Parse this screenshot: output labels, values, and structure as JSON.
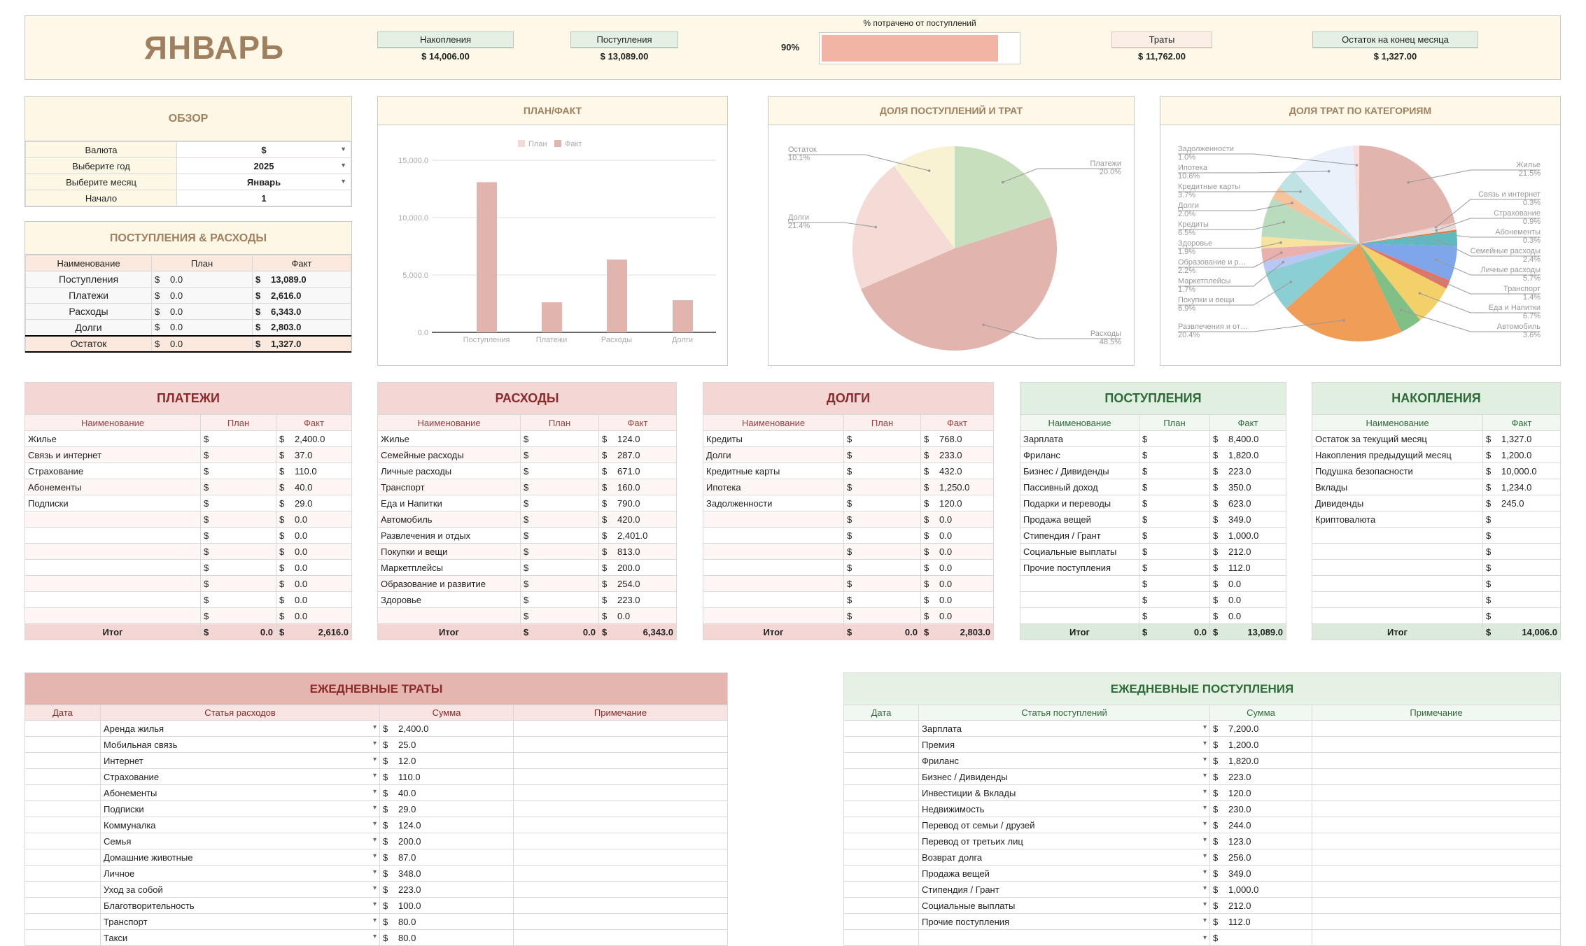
{
  "currency": "$",
  "header": {
    "title": "ЯНВАРЬ",
    "savings_label": "Накопления",
    "savings_value": "$ 14,006.00",
    "income_label": "Поступления",
    "income_value": "$ 13,089.00",
    "spent_pct_label": "% потрачено от поступлений",
    "spent_pct_text": "90%",
    "spent_pct": 0.9,
    "expenses_label": "Траты",
    "expenses_value": "$ 11,762.00",
    "balance_label": "Остаток на конец месяца",
    "balance_value": "$ 1,327.00"
  },
  "overview": {
    "title": "ОБЗОР",
    "rows": [
      {
        "label": "Валюта",
        "value": "$",
        "dropdown": true
      },
      {
        "label": "Выберите год",
        "value": "2025",
        "dropdown": true
      },
      {
        "label": "Выберите месяц",
        "value": "Январь",
        "dropdown": true
      },
      {
        "label": "Начало",
        "value": "1",
        "dropdown": false
      }
    ]
  },
  "summary": {
    "title": "ПОСТУПЛЕНИЯ & РАСХОДЫ",
    "columns": [
      "Наименование",
      "План",
      "Факт"
    ],
    "rows": [
      {
        "name": "Поступления",
        "plan": "0.0",
        "fact": "13,089.0"
      },
      {
        "name": "Платежи",
        "plan": "0.0",
        "fact": "2,616.0"
      },
      {
        "name": "Расходы",
        "plan": "0.0",
        "fact": "6,343.0"
      },
      {
        "name": "Долги",
        "plan": "0.0",
        "fact": "2,803.0"
      }
    ],
    "total": {
      "name": "Остаток",
      "plan": "0.0",
      "fact": "1,327.0"
    }
  },
  "payments": {
    "title": "ПЛАТЕЖИ",
    "columns": [
      "Наименование",
      "План",
      "Факт"
    ],
    "rows": [
      {
        "name": "Жилье",
        "fact": "2,400.0"
      },
      {
        "name": "Связь и интернет",
        "fact": "37.0"
      },
      {
        "name": "Страхование",
        "fact": "110.0"
      },
      {
        "name": "Абонементы",
        "fact": "40.0"
      },
      {
        "name": "Подписки",
        "fact": "29.0"
      },
      {
        "name": "",
        "fact": "0.0"
      },
      {
        "name": "",
        "fact": "0.0"
      },
      {
        "name": "",
        "fact": "0.0"
      },
      {
        "name": "",
        "fact": "0.0"
      },
      {
        "name": "",
        "fact": "0.0"
      },
      {
        "name": "",
        "fact": "0.0"
      },
      {
        "name": "",
        "fact": "0.0"
      }
    ],
    "total": {
      "name": "Итог",
      "plan": "0.0",
      "fact": "2,616.0"
    }
  },
  "expenses": {
    "title": "РАСХОДЫ",
    "columns": [
      "Наименование",
      "План",
      "Факт"
    ],
    "rows": [
      {
        "name": "Жилье",
        "fact": "124.0"
      },
      {
        "name": "Семейные расходы",
        "fact": "287.0"
      },
      {
        "name": "Личные расходы",
        "fact": "671.0"
      },
      {
        "name": "Транспорт",
        "fact": "160.0"
      },
      {
        "name": "Еда и Напитки",
        "fact": "790.0"
      },
      {
        "name": "Автомобиль",
        "fact": "420.0"
      },
      {
        "name": "Развлечения и отдых",
        "fact": "2,401.0"
      },
      {
        "name": "Покупки и вещи",
        "fact": "813.0"
      },
      {
        "name": "Маркетплейсы",
        "fact": "200.0"
      },
      {
        "name": "Образование и развитие",
        "fact": "254.0"
      },
      {
        "name": "Здоровье",
        "fact": "223.0"
      },
      {
        "name": "",
        "fact": "0.0"
      }
    ],
    "total": {
      "name": "Итог",
      "plan": "0.0",
      "fact": "6,343.0"
    }
  },
  "debts": {
    "title": "ДОЛГИ",
    "columns": [
      "Наименование",
      "План",
      "Факт"
    ],
    "rows": [
      {
        "name": "Кредиты",
        "fact": "768.0"
      },
      {
        "name": "Долги",
        "fact": "233.0"
      },
      {
        "name": "Кредитные карты",
        "fact": "432.0"
      },
      {
        "name": "Ипотека",
        "fact": "1,250.0"
      },
      {
        "name": "Задолженности",
        "fact": "120.0"
      },
      {
        "name": "",
        "fact": "0.0"
      },
      {
        "name": "",
        "fact": "0.0"
      },
      {
        "name": "",
        "fact": "0.0"
      },
      {
        "name": "",
        "fact": "0.0"
      },
      {
        "name": "",
        "fact": "0.0"
      },
      {
        "name": "",
        "fact": "0.0"
      },
      {
        "name": "",
        "fact": "0.0"
      }
    ],
    "total": {
      "name": "Итог",
      "plan": "0.0",
      "fact": "2,803.0"
    }
  },
  "income": {
    "title": "ПОСТУПЛЕНИЯ",
    "columns": [
      "Наименование",
      "План",
      "Факт"
    ],
    "rows": [
      {
        "name": "Зарплата",
        "fact": "8,400.0"
      },
      {
        "name": "Фриланс",
        "fact": "1,820.0"
      },
      {
        "name": "Бизнес / Дивиденды",
        "fact": "223.0"
      },
      {
        "name": "Пассивный доход",
        "fact": "350.0"
      },
      {
        "name": "Подарки и переводы",
        "fact": "623.0"
      },
      {
        "name": "Продажа вещей",
        "fact": "349.0"
      },
      {
        "name": "Стипендия / Грант",
        "fact": "1,000.0"
      },
      {
        "name": "Социальные выплаты",
        "fact": "212.0"
      },
      {
        "name": "Прочие поступления",
        "fact": "112.0"
      },
      {
        "name": "",
        "fact": "0.0"
      },
      {
        "name": "",
        "fact": "0.0"
      },
      {
        "name": "",
        "fact": "0.0"
      }
    ],
    "total": {
      "name": "Итог",
      "plan": "0.0",
      "fact": "13,089.0"
    }
  },
  "savings": {
    "title": "НАКОПЛЕНИЯ",
    "columns": [
      "Наименование",
      "Факт"
    ],
    "rows": [
      {
        "name": "Остаток за текущий месяц",
        "fact": "1,327.0"
      },
      {
        "name": "Накопления предыдущий месяц",
        "fact": "1,200.0"
      },
      {
        "name": "Подушка безопасности",
        "fact": "10,000.0"
      },
      {
        "name": "Вклады",
        "fact": "1,234.0"
      },
      {
        "name": "Дивиденды",
        "fact": "245.0"
      },
      {
        "name": "Криптовалюта",
        "fact": ""
      },
      {
        "name": "",
        "fact": ""
      },
      {
        "name": "",
        "fact": ""
      },
      {
        "name": "",
        "fact": ""
      },
      {
        "name": "",
        "fact": ""
      },
      {
        "name": "",
        "fact": ""
      },
      {
        "name": "",
        "fact": ""
      }
    ],
    "total": {
      "name": "Итог",
      "fact": "14,006.0"
    }
  },
  "daily_expenses": {
    "title": "ЕЖЕДНЕВНЫЕ ТРАТЫ",
    "columns": [
      "Дата",
      "Статья расходов",
      "Сумма",
      "Примечание"
    ],
    "rows": [
      {
        "item": "Аренда жилья",
        "amount": "2,400.0"
      },
      {
        "item": "Мобильная связь",
        "amount": "25.0"
      },
      {
        "item": "Интернет",
        "amount": "12.0"
      },
      {
        "item": "Страхование",
        "amount": "110.0"
      },
      {
        "item": "Абонементы",
        "amount": "40.0"
      },
      {
        "item": "Подписки",
        "amount": "29.0"
      },
      {
        "item": "Коммуналка",
        "amount": "124.0"
      },
      {
        "item": "Семья",
        "amount": "200.0"
      },
      {
        "item": "Домашние животные",
        "amount": "87.0"
      },
      {
        "item": "Личное",
        "amount": "348.0"
      },
      {
        "item": "Уход за собой",
        "amount": "223.0"
      },
      {
        "item": "Благотворительность",
        "amount": "100.0"
      },
      {
        "item": "Транспорт",
        "amount": "80.0"
      },
      {
        "item": "Такси",
        "amount": "80.0"
      }
    ]
  },
  "daily_income": {
    "title": "ЕЖЕДНЕВНЫЕ ПОСТУПЛЕНИЯ",
    "columns": [
      "Дата",
      "Статья поступлений",
      "Сумма",
      "Примечание"
    ],
    "rows": [
      {
        "item": "Зарплата",
        "amount": "7,200.0"
      },
      {
        "item": "Премия",
        "amount": "1,200.0"
      },
      {
        "item": "Фриланс",
        "amount": "1,820.0"
      },
      {
        "item": "Бизнес / Дивиденды",
        "amount": "223.0"
      },
      {
        "item": "Инвестиции & Вклады",
        "amount": "120.0"
      },
      {
        "item": "Недвижимость",
        "amount": "230.0"
      },
      {
        "item": "Перевод от семьи / друзей",
        "amount": "244.0"
      },
      {
        "item": "Перевод от третьих лиц",
        "amount": "123.0"
      },
      {
        "item": "Возврат долга",
        "amount": "256.0"
      },
      {
        "item": "Продажа вещей",
        "amount": "349.0"
      },
      {
        "item": "Стипендия / Грант",
        "amount": "1,000.0"
      },
      {
        "item": "Социальные выплаты",
        "amount": "212.0"
      },
      {
        "item": "Прочие поступления",
        "amount": "112.0"
      },
      {
        "item": "",
        "amount": ""
      }
    ]
  },
  "chart_data": [
    {
      "type": "bar",
      "title": "ПЛАН/ФАКТ",
      "categories": [
        "Поступления",
        "Платежи",
        "Расходы",
        "Долги"
      ],
      "series": [
        {
          "name": "План",
          "values": [
            0,
            0,
            0,
            0
          ],
          "color": "#f4d8d4"
        },
        {
          "name": "Факт",
          "values": [
            13089,
            2616,
            6343,
            2803
          ],
          "color": "#e2b4ae"
        }
      ],
      "yticks": [
        "0.0",
        "5,000.0",
        "10,000.0",
        "15,000.0"
      ],
      "ylim": [
        0,
        15000
      ],
      "legend": "top",
      "grid": true
    },
    {
      "type": "pie",
      "title": "ДОЛЯ ПОСТУПЛЕНИЙ И ТРАТ",
      "slices": [
        {
          "label": "Платежи",
          "pct": "20.0%",
          "value": 20.0,
          "color": "#c8dfbd"
        },
        {
          "label": "Расходы",
          "pct": "48.5%",
          "value": 48.5,
          "color": "#e2b4ae"
        },
        {
          "label": "Долги",
          "pct": "21.4%",
          "value": 21.4,
          "color": "#f4dbd6"
        },
        {
          "label": "Остаток",
          "pct": "10.1%",
          "value": 10.1,
          "color": "#f8f1d2"
        }
      ]
    },
    {
      "type": "pie",
      "title": "ДОЛЯ ТРАТ ПО КАТЕГОРИЯМ",
      "slices": [
        {
          "label": "Жилье",
          "pct": "21.5%",
          "value": 21.5,
          "color": "#e2b4ae"
        },
        {
          "label": "Связь и интернет",
          "pct": "0.3%",
          "value": 0.3,
          "color": "#eccfcb"
        },
        {
          "label": "Страхование",
          "pct": "0.9%",
          "value": 0.9,
          "color": "#e9dad7"
        },
        {
          "label": "Абонементы",
          "pct": "0.3%",
          "value": 0.3,
          "color": "#e07a3a"
        },
        {
          "label": "Семейные расходы",
          "pct": "2.4%",
          "value": 2.4,
          "color": "#5fb9bf"
        },
        {
          "label": "Личные расходы",
          "pct": "5.7%",
          "value": 5.7,
          "color": "#80a6ea"
        },
        {
          "label": "Транспорт",
          "pct": "1.4%",
          "value": 1.4,
          "color": "#e07466"
        },
        {
          "label": "Еда и Напитки",
          "pct": "6.7%",
          "value": 6.7,
          "color": "#f3d06a"
        },
        {
          "label": "Автомобиль",
          "pct": "3.6%",
          "value": 3.6,
          "color": "#80bf85"
        },
        {
          "label": "Развлечения и от…",
          "pct": "20.4%",
          "value": 20.4,
          "color": "#f09d58"
        },
        {
          "label": "Покупки и вещи",
          "pct": "6.9%",
          "value": 6.9,
          "color": "#8ccfd3"
        },
        {
          "label": "Маркетплейсы",
          "pct": "1.7%",
          "value": 1.7,
          "color": "#b8c8f5"
        },
        {
          "label": "Образование и р…",
          "pct": "2.2%",
          "value": 2.2,
          "color": "#eab0ad"
        },
        {
          "label": "Здоровье",
          "pct": "1.9%",
          "value": 1.9,
          "color": "#f7e3a0"
        },
        {
          "label": "Кредиты",
          "pct": "6.5%",
          "value": 6.5,
          "color": "#b9dcbe"
        },
        {
          "label": "Долги",
          "pct": "2.0%",
          "value": 2.0,
          "color": "#f5c39e"
        },
        {
          "label": "Кредитные карты",
          "pct": "3.7%",
          "value": 3.7,
          "color": "#bfe3e5"
        },
        {
          "label": "Ипотека",
          "pct": "10.6%",
          "value": 10.6,
          "color": "#eaf1fb"
        },
        {
          "label": "Задолженности",
          "pct": "1.0%",
          "value": 1.0,
          "color": "#f7e0dd"
        }
      ]
    }
  ]
}
